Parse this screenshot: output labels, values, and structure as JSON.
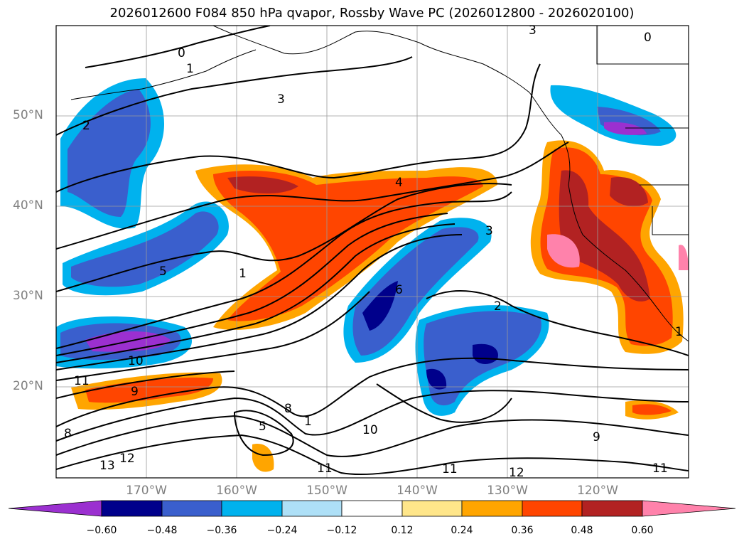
{
  "title": "2026012600 F084 850 hPa qvapor, Rossby Wave PC (2026012800 - 2026020100)",
  "map": {
    "lat_labels": [
      "50°N",
      "40°N",
      "30°N",
      "20°N"
    ],
    "lon_labels": [
      "170°W",
      "160°W",
      "150°W",
      "140°W",
      "130°W",
      "120°W"
    ],
    "extent": {
      "lon": [
        -180,
        -110
      ],
      "lat": [
        10,
        60
      ]
    },
    "grid": true,
    "contour_labels": [
      "0",
      "1",
      "3",
      "2",
      "3",
      "4",
      "3",
      "5",
      "1",
      "0",
      "10",
      "8",
      "9",
      "11",
      "5",
      "6",
      "1",
      "10",
      "2",
      "11",
      "12",
      "9",
      "13",
      "12",
      "11",
      "1",
      "11",
      "8"
    ]
  },
  "colorbar": {
    "ticks": [
      "−0.60",
      "−0.48",
      "−0.36",
      "−0.24",
      "−0.12",
      "0.12",
      "0.24",
      "0.36",
      "0.48",
      "0.60"
    ],
    "colors": [
      "#9b30d0",
      "#00008b",
      "#3a5fcd",
      "#00b2ee",
      "#aee0f7",
      "#ffffff",
      "#ffe68a",
      "#ffa500",
      "#ff4500",
      "#b22222",
      "#ff82ab"
    ],
    "extend": "both"
  }
}
